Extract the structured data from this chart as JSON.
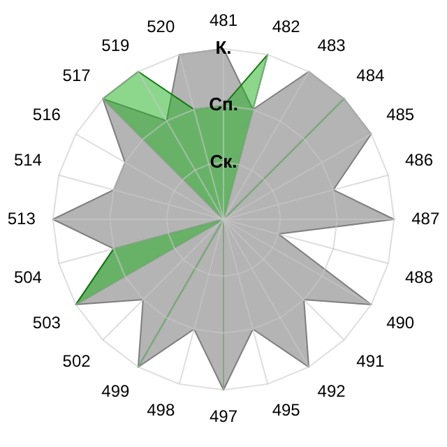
{
  "chart_data": {
    "type": "radar",
    "categories": [
      "481",
      "482",
      "483",
      "484",
      "485",
      "486",
      "487",
      "488",
      "490",
      "491",
      "492",
      "495",
      "497",
      "498",
      "499",
      "502",
      "503",
      "504",
      "513",
      "514",
      "516",
      "517",
      "519",
      "520"
    ],
    "ylim": [
      0,
      3
    ],
    "yticks": [
      {
        "value": 1,
        "label": "Ск."
      },
      {
        "value": 2,
        "label": "Сп."
      },
      {
        "value": 3,
        "label": "К."
      }
    ],
    "grid": true,
    "legend": false,
    "marker": "none",
    "series": [
      {
        "color": "#b4b4b4",
        "values": [
          3,
          2,
          3,
          3,
          3,
          2,
          3,
          1,
          3,
          2,
          3,
          2,
          3,
          2,
          3,
          2,
          3,
          2,
          3,
          2,
          2,
          3,
          2,
          3
        ]
      },
      {
        "color": "#1caf1c",
        "values": [
          2,
          3,
          0,
          3,
          0,
          0,
          0,
          0,
          0,
          0,
          0,
          0,
          3,
          0,
          3,
          0,
          3,
          2,
          0,
          0,
          0,
          3,
          3,
          2
        ]
      }
    ]
  }
}
